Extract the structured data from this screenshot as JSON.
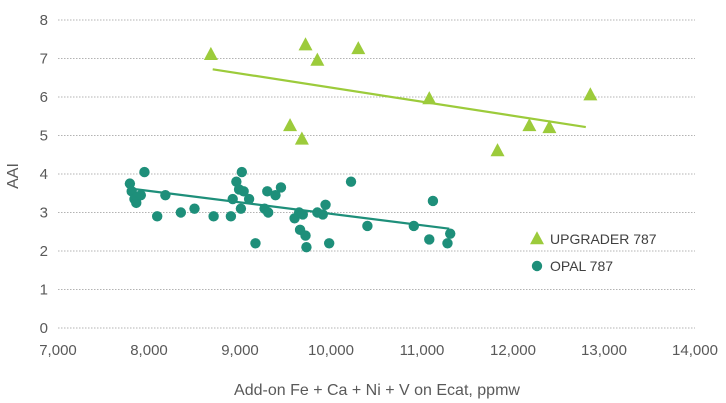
{
  "chart_data": {
    "type": "scatter",
    "xlabel": "Add-on Fe + Ca + Ni + V on Ecat, ppmw",
    "ylabel": "AAI",
    "xlim": [
      7000,
      14000
    ],
    "ylim": [
      0,
      8
    ],
    "x_ticks": [
      "7,000",
      "8,000",
      "9,000",
      "10,000",
      "11,000",
      "12,000",
      "13,000",
      "14,000"
    ],
    "y_ticks": [
      "0",
      "1",
      "2",
      "3",
      "4",
      "5",
      "6",
      "7",
      "8"
    ],
    "grid": "horizontal",
    "legend_position": "right",
    "series": [
      {
        "name": "UPGRADER 787",
        "marker": "triangle",
        "color": "#9ccb3b",
        "points": [
          [
            8680,
            7.1
          ],
          [
            9720,
            7.35
          ],
          [
            9850,
            6.95
          ],
          [
            10300,
            7.25
          ],
          [
            9550,
            5.25
          ],
          [
            9680,
            4.9
          ],
          [
            11080,
            5.95
          ],
          [
            11830,
            4.6
          ],
          [
            12180,
            5.25
          ],
          [
            12400,
            5.2
          ],
          [
            12850,
            6.05
          ]
        ],
        "trendline": [
          [
            8700,
            6.72
          ],
          [
            12800,
            5.22
          ]
        ]
      },
      {
        "name": "OPAL 787",
        "marker": "circle",
        "color": "#1e8f7a",
        "points": [
          [
            7790,
            3.75
          ],
          [
            7810,
            3.55
          ],
          [
            7840,
            3.35
          ],
          [
            7860,
            3.25
          ],
          [
            7870,
            3.4
          ],
          [
            7910,
            3.45
          ],
          [
            7950,
            4.05
          ],
          [
            8090,
            2.9
          ],
          [
            8180,
            3.45
          ],
          [
            8350,
            3.0
          ],
          [
            8500,
            3.1
          ],
          [
            8710,
            2.9
          ],
          [
            8900,
            2.9
          ],
          [
            8920,
            3.35
          ],
          [
            8960,
            3.8
          ],
          [
            8990,
            3.6
          ],
          [
            9010,
            3.1
          ],
          [
            9020,
            4.05
          ],
          [
            9040,
            3.55
          ],
          [
            9100,
            3.35
          ],
          [
            9170,
            2.2
          ],
          [
            9270,
            3.1
          ],
          [
            9300,
            3.55
          ],
          [
            9310,
            3.0
          ],
          [
            9390,
            3.45
          ],
          [
            9450,
            3.65
          ],
          [
            9600,
            2.85
          ],
          [
            9650,
            3.0
          ],
          [
            9660,
            2.55
          ],
          [
            9690,
            2.95
          ],
          [
            9720,
            2.4
          ],
          [
            9730,
            2.1
          ],
          [
            9850,
            3.0
          ],
          [
            9910,
            2.95
          ],
          [
            9940,
            3.2
          ],
          [
            9980,
            2.2
          ],
          [
            10220,
            3.8
          ],
          [
            10400,
            2.65
          ],
          [
            10910,
            2.65
          ],
          [
            11080,
            2.3
          ],
          [
            11120,
            3.3
          ],
          [
            11280,
            2.2
          ],
          [
            11310,
            2.45
          ]
        ],
        "trendline": [
          [
            7800,
            3.62
          ],
          [
            11300,
            2.58
          ]
        ]
      }
    ]
  }
}
